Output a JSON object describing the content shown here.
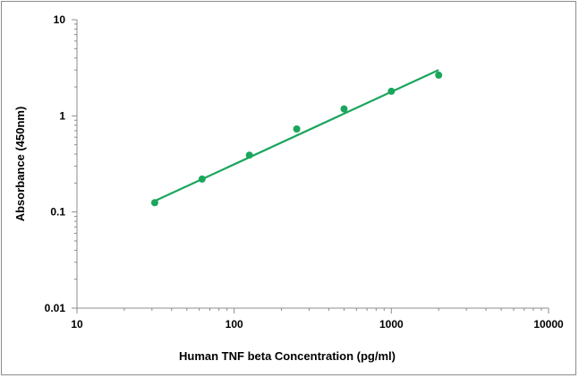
{
  "chart_data": {
    "type": "scatter",
    "title": "",
    "xlabel": "Human TNF beta Concentration (pg/ml)",
    "ylabel": "Absorbance (450nm)",
    "x_scale": "log",
    "y_scale": "log",
    "xlim": [
      10,
      10000
    ],
    "ylim": [
      0.01,
      10
    ],
    "x_ticks": [
      10,
      100,
      1000,
      10000
    ],
    "x_tick_labels": [
      "10",
      "100",
      "1000",
      "10000"
    ],
    "y_ticks": [
      0.01,
      0.1,
      1,
      10
    ],
    "y_tick_labels": [
      "0.01",
      "0.1",
      "1",
      "10"
    ],
    "grid": false,
    "legend": "none",
    "series": [
      {
        "type": "scatter",
        "x": [
          31.25,
          62.5,
          125,
          250,
          500,
          1000,
          2000
        ],
        "y": [
          0.125,
          0.22,
          0.39,
          0.73,
          1.18,
          1.8,
          2.65
        ],
        "color": "#1aa65c"
      },
      {
        "type": "line",
        "x": [
          31.25,
          2000
        ],
        "y": [
          0.13,
          3.0
        ],
        "color": "#1aa65c"
      }
    ]
  }
}
